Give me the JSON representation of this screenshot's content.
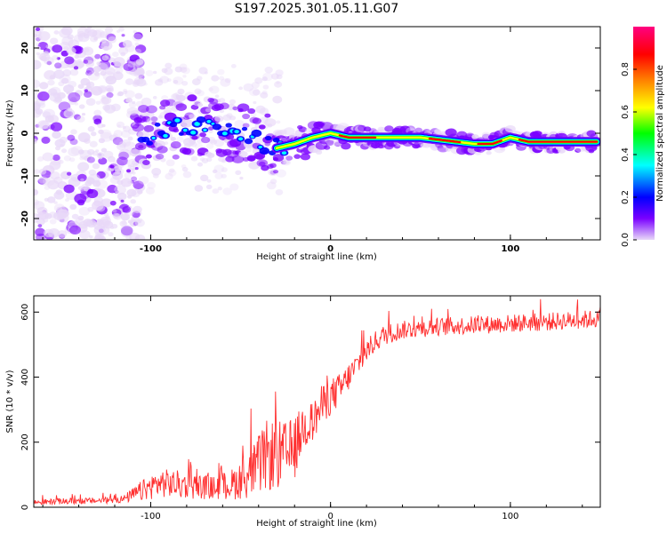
{
  "title": "S197.2025.301.05.11.G07",
  "chart_data": [
    {
      "type": "heatmap",
      "title": "S197.2025.301.05.11.G07",
      "xlabel": "Height of straight line (km)",
      "ylabel": "Frequency (Hz)",
      "xlim": [
        -165,
        150
      ],
      "ylim": [
        -25,
        25
      ],
      "xticks": [
        "-100",
        "0",
        "100"
      ],
      "yticks": [
        "20",
        "10",
        "0",
        "-10",
        "-20"
      ],
      "colorbar": {
        "label": "Normalized spectral amplitude",
        "range": [
          0,
          1
        ],
        "ticks": [
          "0.0",
          "0.2",
          "0.4",
          "0.6",
          "0.8"
        ],
        "colormap": [
          "#e8d8f8",
          "#7a00ff",
          "#0000ff",
          "#00ffff",
          "#00ff00",
          "#ffff00",
          "#ff8000",
          "#ff0000",
          "#ff0080"
        ]
      },
      "ridge": {
        "x": [
          -110,
          -100,
          -90,
          -80,
          -70,
          -60,
          -50,
          -40,
          -30,
          -20,
          -10,
          0,
          10,
          20,
          30,
          40,
          50,
          60,
          70,
          80,
          90,
          100,
          110,
          120,
          130,
          148
        ],
        "frequency": [
          -1,
          -0.5,
          1,
          2,
          1,
          0.5,
          -0.5,
          -1.5,
          -3.5,
          -2.5,
          -1,
          0,
          -1,
          -1,
          -1,
          -1,
          -1,
          -1.5,
          -2,
          -2.5,
          -2.5,
          -1,
          -2,
          -2,
          -2,
          -2
        ]
      }
    },
    {
      "type": "line",
      "xlabel": "Height of straight line (km)",
      "ylabel": "SNR (10 * v/v)",
      "xlim": [
        -165,
        150
      ],
      "ylim": [
        0,
        650
      ],
      "xticks": [
        "-100",
        "0",
        "100"
      ],
      "yticks": [
        "0",
        "200",
        "400",
        "600"
      ],
      "series": [
        {
          "name": "SNR",
          "color": "#ff3030",
          "x": [
            -165,
            -150,
            -130,
            -115,
            -105,
            -95,
            -85,
            -75,
            -65,
            -55,
            -45,
            -35,
            -25,
            -20,
            -15,
            -10,
            -5,
            0,
            5,
            10,
            15,
            20,
            25,
            30,
            40,
            60,
            80,
            100,
            120,
            150
          ],
          "mean": [
            15,
            18,
            20,
            25,
            50,
            75,
            70,
            65,
            60,
            70,
            100,
            160,
            160,
            180,
            250,
            260,
            310,
            340,
            360,
            400,
            440,
            480,
            510,
            530,
            545,
            555,
            560,
            565,
            570,
            580
          ],
          "spread": [
            10,
            12,
            12,
            15,
            40,
            55,
            55,
            50,
            45,
            60,
            90,
            140,
            130,
            120,
            90,
            80,
            80,
            70,
            65,
            55,
            50,
            45,
            40,
            40,
            35,
            35,
            35,
            35,
            35,
            35
          ]
        }
      ]
    }
  ]
}
